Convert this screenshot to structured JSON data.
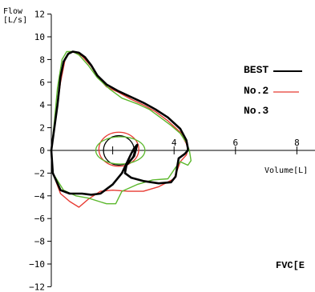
{
  "chart_data": {
    "type": "line",
    "ylabel_line1": "Flow",
    "ylabel_line2": "[L/s]",
    "xlabel": "Volume[L]",
    "xlim": [
      0,
      8
    ],
    "ylim": [
      -12,
      12
    ],
    "x_ticks": [
      {
        "value": 2,
        "label": ""
      },
      {
        "value": 4,
        "label": "4"
      },
      {
        "value": 6,
        "label": "6"
      },
      {
        "value": 8,
        "label": "8"
      }
    ],
    "y_ticks": [
      12,
      10,
      8,
      6,
      4,
      2,
      0,
      -2,
      -4,
      -6,
      -8,
      -10,
      -12
    ],
    "y_tick_labels": [
      "12",
      "10",
      "8",
      "6",
      "4",
      "2",
      "0",
      "−2",
      "−4",
      "−6",
      "−8",
      "−10",
      "−12"
    ],
    "grid": false,
    "legend_position": "right",
    "corner_text": "FVC[E",
    "series": [
      {
        "name": "BEST",
        "color": "#000000",
        "width": 2.6,
        "points": [
          [
            0.0,
            0.0
          ],
          [
            0.2,
            4.0
          ],
          [
            0.3,
            6.5
          ],
          [
            0.4,
            7.8
          ],
          [
            0.55,
            8.5
          ],
          [
            0.7,
            8.7
          ],
          [
            0.9,
            8.6
          ],
          [
            1.1,
            8.2
          ],
          [
            1.3,
            7.5
          ],
          [
            1.5,
            6.6
          ],
          [
            1.8,
            5.8
          ],
          [
            2.2,
            5.2
          ],
          [
            2.6,
            4.7
          ],
          [
            3.0,
            4.2
          ],
          [
            3.4,
            3.6
          ],
          [
            3.8,
            2.9
          ],
          [
            4.2,
            1.9
          ],
          [
            4.4,
            0.9
          ],
          [
            4.45,
            0.2
          ],
          [
            4.45,
            0.0
          ],
          [
            4.35,
            -0.3
          ],
          [
            4.15,
            -0.7
          ],
          [
            4.05,
            -2.3
          ],
          [
            3.9,
            -2.8
          ],
          [
            3.5,
            -2.9
          ],
          [
            3.0,
            -2.7
          ],
          [
            2.6,
            -2.4
          ],
          [
            2.4,
            -2.0
          ],
          [
            2.45,
            -1.3
          ],
          [
            2.7,
            -0.5
          ],
          [
            2.8,
            0.5
          ],
          [
            2.7,
            0.2
          ],
          [
            2.6,
            -0.3
          ],
          [
            2.3,
            -2.0
          ],
          [
            2.0,
            -3.0
          ],
          [
            1.6,
            -3.8
          ],
          [
            1.3,
            -3.9
          ],
          [
            1.0,
            -3.8
          ],
          [
            0.6,
            -3.8
          ],
          [
            0.3,
            -3.5
          ],
          [
            0.05,
            -2.0
          ],
          [
            0.0,
            0.0
          ]
        ]
      },
      {
        "name": "No.2",
        "color": "#e83a32",
        "width": 1.4,
        "points": [
          [
            0.0,
            0.0
          ],
          [
            0.15,
            3.0
          ],
          [
            0.3,
            6.0
          ],
          [
            0.45,
            8.0
          ],
          [
            0.6,
            8.7
          ],
          [
            0.8,
            8.6
          ],
          [
            1.0,
            8.3
          ],
          [
            1.3,
            7.4
          ],
          [
            1.5,
            6.5
          ],
          [
            1.8,
            5.6
          ],
          [
            2.2,
            5.1
          ],
          [
            2.6,
            4.5
          ],
          [
            3.0,
            4.0
          ],
          [
            3.4,
            3.4
          ],
          [
            3.8,
            2.6
          ],
          [
            4.2,
            1.6
          ],
          [
            4.4,
            0.6
          ],
          [
            4.45,
            0.1
          ],
          [
            4.4,
            -0.4
          ],
          [
            4.2,
            -1.0
          ],
          [
            4.0,
            -2.5
          ],
          [
            3.5,
            -3.2
          ],
          [
            3.0,
            -3.6
          ],
          [
            2.5,
            -3.6
          ],
          [
            2.0,
            -3.5
          ],
          [
            1.6,
            -3.6
          ],
          [
            1.2,
            -4.3
          ],
          [
            0.9,
            -5.0
          ],
          [
            0.6,
            -4.5
          ],
          [
            0.3,
            -3.8
          ],
          [
            0.05,
            -2.0
          ],
          [
            0.0,
            0.0
          ]
        ]
      },
      {
        "name": "No.3",
        "color": "#5cb82d",
        "width": 1.4,
        "points": [
          [
            0.0,
            0.0
          ],
          [
            0.1,
            2.5
          ],
          [
            0.2,
            5.5
          ],
          [
            0.35,
            8.0
          ],
          [
            0.5,
            8.7
          ],
          [
            0.7,
            8.7
          ],
          [
            0.9,
            8.4
          ],
          [
            1.2,
            7.5
          ],
          [
            1.5,
            6.4
          ],
          [
            1.9,
            5.4
          ],
          [
            2.3,
            4.6
          ],
          [
            2.8,
            4.1
          ],
          [
            3.2,
            3.6
          ],
          [
            3.6,
            2.8
          ],
          [
            3.9,
            2.2
          ],
          [
            4.2,
            1.5
          ],
          [
            4.4,
            0.7
          ],
          [
            4.5,
            0.0
          ],
          [
            4.55,
            -0.9
          ],
          [
            4.45,
            -1.3
          ],
          [
            4.2,
            -1.0
          ],
          [
            4.05,
            -1.5
          ],
          [
            3.8,
            -2.5
          ],
          [
            3.3,
            -2.6
          ],
          [
            2.8,
            -3.0
          ],
          [
            2.3,
            -3.6
          ],
          [
            2.1,
            -4.7
          ],
          [
            1.8,
            -4.7
          ],
          [
            1.2,
            -4.2
          ],
          [
            0.8,
            -4.0
          ],
          [
            0.4,
            -3.5
          ],
          [
            0.05,
            -2.0
          ],
          [
            0.0,
            0.0
          ]
        ]
      }
    ],
    "tidal_loops": [
      {
        "color": "#000000",
        "cx": 2.2,
        "cy": 0.0,
        "rx": 0.5,
        "ry": 1.3
      },
      {
        "color": "#e83a32",
        "cx": 2.2,
        "cy": 0.1,
        "rx": 0.65,
        "ry": 1.5
      },
      {
        "color": "#5cb82d",
        "cx": 2.25,
        "cy": 0.0,
        "rx": 0.8,
        "ry": 1.2
      }
    ]
  }
}
